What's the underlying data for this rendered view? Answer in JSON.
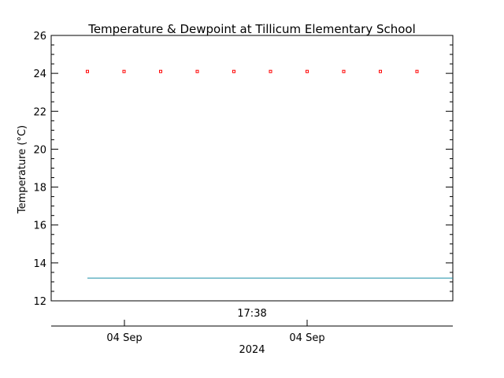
{
  "chart_data": {
    "type": "scatter",
    "title": "Temperature & Dewpoint at Tillicum Elementary School",
    "ylabel": "Temperature (°C)",
    "ylim": [
      12,
      26
    ],
    "yticks": [
      12,
      14,
      16,
      18,
      20,
      22,
      24,
      26
    ],
    "y_minor_step": 0.5,
    "x_axis": {
      "time_label": "17:38",
      "date_labels": [
        "04 Sep",
        "04 Sep"
      ],
      "year_label": "2024"
    },
    "series": [
      {
        "style": "markers",
        "color": "#ff0000",
        "x": [
          0,
          1,
          2,
          3,
          4,
          5,
          6,
          7,
          8,
          9
        ],
        "y": [
          24.1,
          24.1,
          24.1,
          24.1,
          24.1,
          24.1,
          24.1,
          24.1,
          24.1,
          24.1
        ]
      },
      {
        "style": "line",
        "color": "#1a8fa8",
        "x": [
          0,
          10
        ],
        "y": [
          13.2,
          13.2
        ]
      }
    ]
  }
}
